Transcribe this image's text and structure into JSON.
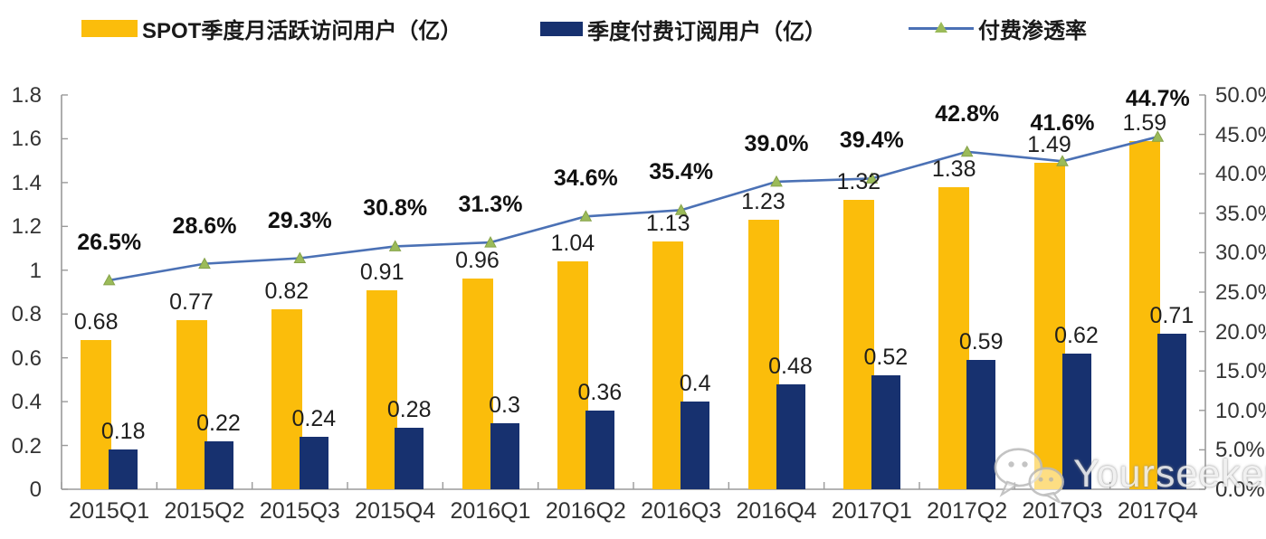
{
  "legend": [
    {
      "label": "SPOT季度月活跃访问用户（亿）",
      "color": "#FBBD0B",
      "type": "bar"
    },
    {
      "label": "季度付费订阅用户（亿）",
      "color": "#17316F",
      "type": "bar"
    },
    {
      "label": "付费渗透率",
      "color": "#4B71B5",
      "marker_color": "#9BBB59",
      "type": "line"
    }
  ],
  "watermark": {
    "text": "Yourseeker",
    "icon": "wechat-chat-bubbles-icon"
  },
  "chart_data": {
    "type": "combo",
    "categories": [
      "2015Q1",
      "2015Q2",
      "2015Q3",
      "2015Q4",
      "2016Q1",
      "2016Q2",
      "2016Q3",
      "2016Q4",
      "2017Q1",
      "2017Q2",
      "2017Q3",
      "2017Q4"
    ],
    "series": [
      {
        "name": "SPOT季度月活跃访问用户（亿）",
        "type": "bar",
        "axis": "left",
        "color": "#FBBD0B",
        "values": [
          0.68,
          0.77,
          0.82,
          0.91,
          0.96,
          1.04,
          1.13,
          1.23,
          1.32,
          1.38,
          1.49,
          1.59
        ],
        "data_labels": [
          "0.68",
          "0.77",
          "0.82",
          "0.91",
          "0.96",
          "1.04",
          "1.13",
          "1.23",
          "1.32",
          "1.38",
          "1.49",
          "1.59"
        ]
      },
      {
        "name": "季度付费订阅用户（亿）",
        "type": "bar",
        "axis": "left",
        "color": "#17316F",
        "values": [
          0.18,
          0.22,
          0.24,
          0.28,
          0.3,
          0.36,
          0.4,
          0.48,
          0.52,
          0.59,
          0.62,
          0.71
        ],
        "data_labels": [
          "0.18",
          "0.22",
          "0.24",
          "0.28",
          "0.3",
          "0.36",
          "0.4",
          "0.48",
          "0.52",
          "0.59",
          "0.62",
          "0.71"
        ]
      },
      {
        "name": "付费渗透率",
        "type": "line",
        "axis": "right",
        "color": "#4B71B5",
        "marker": "triangle",
        "marker_color": "#9BBB59",
        "values": [
          26.5,
          28.6,
          29.3,
          30.8,
          31.3,
          34.6,
          35.4,
          39.0,
          39.4,
          42.8,
          41.6,
          44.7
        ],
        "data_labels": [
          "26.5%",
          "28.6%",
          "29.3%",
          "30.8%",
          "31.3%",
          "34.6%",
          "35.4%",
          "39.0%",
          "39.4%",
          "42.8%",
          "41.6%",
          "44.7%"
        ]
      }
    ],
    "left_axis": {
      "min": 0,
      "max": 1.8,
      "step": 0.2,
      "tick_labels": [
        "0",
        "0.2",
        "0.4",
        "0.6",
        "0.8",
        "1",
        "1.2",
        "1.4",
        "1.6",
        "1.8"
      ]
    },
    "right_axis": {
      "min": 0,
      "max": 50,
      "step": 5,
      "tick_labels": [
        "0.0%",
        "5.0%",
        "10.0%",
        "15.0%",
        "20.0%",
        "25.0%",
        "30.0%",
        "35.0%",
        "40.0%",
        "45.0%",
        "50.0%"
      ]
    },
    "grid": false,
    "legend_position": "top",
    "axis_line_color": "#9a9a9a"
  }
}
